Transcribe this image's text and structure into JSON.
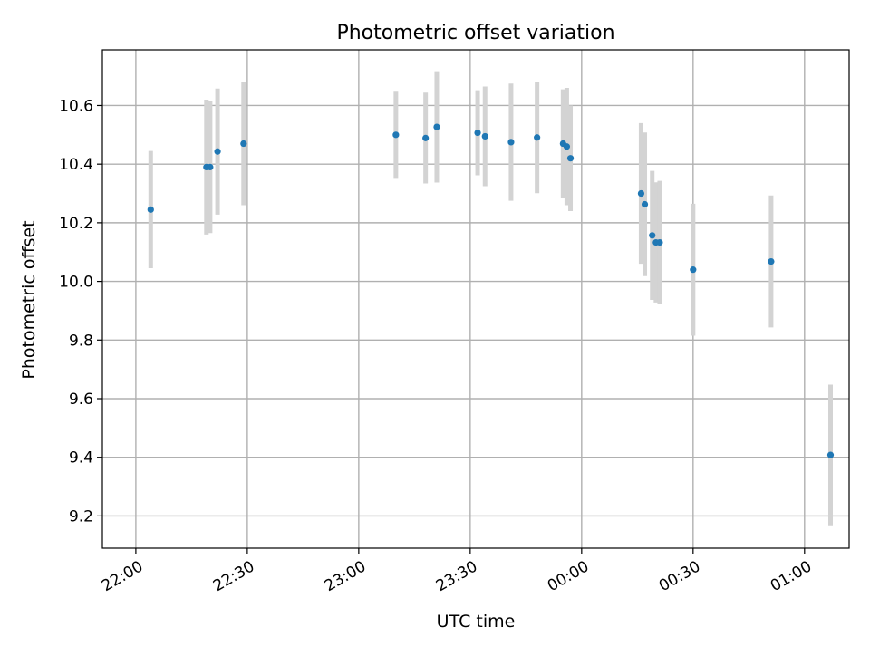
{
  "chart_data": {
    "type": "scatter",
    "title": "Photometric offset variation",
    "xlabel": "UTC time",
    "ylabel": "Photometric offset",
    "xlim": [
      "21:51",
      "01:12"
    ],
    "ylim": [
      9.09,
      10.79
    ],
    "grid": true,
    "x_ticks": [
      "22:00",
      "22:30",
      "23:00",
      "23:30",
      "00:00",
      "00:30",
      "01:00"
    ],
    "y_ticks": [
      "9.2",
      "9.4",
      "9.6",
      "9.8",
      "10.0",
      "10.2",
      "10.4",
      "10.6"
    ],
    "series": [
      {
        "marker_color": "#1f77b4",
        "errorbar_color": "#d3d3d3",
        "points": [
          {
            "time": "22:04",
            "y": 10.245,
            "err": 0.2
          },
          {
            "time": "22:19",
            "y": 10.39,
            "err": 0.23
          },
          {
            "time": "22:20",
            "y": 10.39,
            "err": 0.225
          },
          {
            "time": "22:22",
            "y": 10.443,
            "err": 0.215
          },
          {
            "time": "22:29",
            "y": 10.47,
            "err": 0.21
          },
          {
            "time": "23:10",
            "y": 10.5,
            "err": 0.15
          },
          {
            "time": "23:18",
            "y": 10.489,
            "err": 0.155
          },
          {
            "time": "23:21",
            "y": 10.527,
            "err": 0.19
          },
          {
            "time": "23:32",
            "y": 10.507,
            "err": 0.145
          },
          {
            "time": "23:34",
            "y": 10.495,
            "err": 0.17
          },
          {
            "time": "23:41",
            "y": 10.475,
            "err": 0.2
          },
          {
            "time": "23:48",
            "y": 10.491,
            "err": 0.19
          },
          {
            "time": "23:55",
            "y": 10.47,
            "err": 0.185
          },
          {
            "time": "23:56",
            "y": 10.46,
            "err": 0.2
          },
          {
            "time": "23:57",
            "y": 10.42,
            "err": 0.18
          },
          {
            "time": "00:16",
            "y": 10.3,
            "err": 0.24
          },
          {
            "time": "00:17",
            "y": 10.263,
            "err": 0.245
          },
          {
            "time": "00:19",
            "y": 10.157,
            "err": 0.22
          },
          {
            "time": "00:20",
            "y": 10.133,
            "err": 0.205
          },
          {
            "time": "00:21",
            "y": 10.133,
            "err": 0.21
          },
          {
            "time": "00:30",
            "y": 10.04,
            "err": 0.225
          },
          {
            "time": "00:51",
            "y": 10.068,
            "err": 0.225
          },
          {
            "time": "01:07",
            "y": 9.408,
            "err": 0.24
          }
        ]
      }
    ]
  }
}
